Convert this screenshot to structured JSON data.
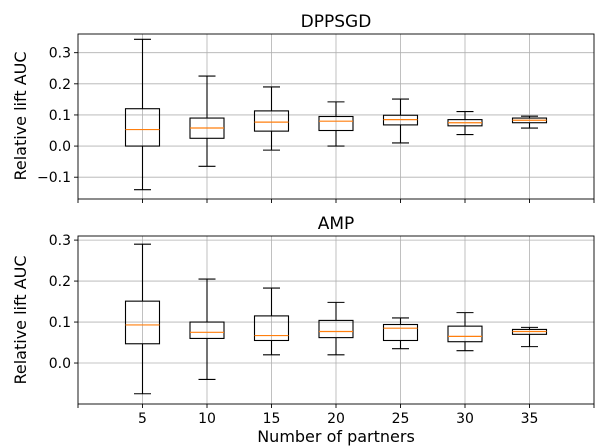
{
  "chart_data": [
    {
      "type": "box",
      "title": "DPPSGD",
      "xlabel": "",
      "ylabel": "Relative lift AUC",
      "categories": [
        "5",
        "10",
        "15",
        "20",
        "25",
        "30",
        "35"
      ],
      "x": [
        5,
        10,
        15,
        20,
        25,
        30,
        35
      ],
      "xlim": [
        0,
        40
      ],
      "ylim": [
        -0.17,
        0.36
      ],
      "yticks": [
        -0.1,
        0.0,
        0.1,
        0.2,
        0.3
      ],
      "ytick_labels": [
        "−0.1",
        "0.0",
        "0.1",
        "0.2",
        "0.3"
      ],
      "show_xtick_labels": false,
      "grid": true,
      "boxes": [
        {
          "x": 5,
          "whisker_low": -0.14,
          "q1": 0.0,
          "median": 0.053,
          "q3": 0.12,
          "whisker_high": 0.343
        },
        {
          "x": 10,
          "whisker_low": -0.065,
          "q1": 0.025,
          "median": 0.058,
          "q3": 0.09,
          "whisker_high": 0.225
        },
        {
          "x": 15,
          "whisker_low": -0.013,
          "q1": 0.048,
          "median": 0.077,
          "q3": 0.113,
          "whisker_high": 0.19
        },
        {
          "x": 20,
          "whisker_low": 0.0,
          "q1": 0.05,
          "median": 0.08,
          "q3": 0.095,
          "whisker_high": 0.142
        },
        {
          "x": 25,
          "whisker_low": 0.01,
          "q1": 0.068,
          "median": 0.085,
          "q3": 0.099,
          "whisker_high": 0.151
        },
        {
          "x": 30,
          "whisker_low": 0.037,
          "q1": 0.065,
          "median": 0.075,
          "q3": 0.085,
          "whisker_high": 0.111
        },
        {
          "x": 35,
          "whisker_low": 0.058,
          "q1": 0.075,
          "median": 0.083,
          "q3": 0.09,
          "whisker_high": 0.096
        }
      ]
    },
    {
      "type": "box",
      "title": "AMP",
      "xlabel": "Number of partners",
      "ylabel": "Relative lift AUC",
      "categories": [
        "5",
        "10",
        "15",
        "20",
        "25",
        "30",
        "35"
      ],
      "x": [
        5,
        10,
        15,
        20,
        25,
        30,
        35
      ],
      "xlim": [
        0,
        40
      ],
      "ylim": [
        -0.1,
        0.31
      ],
      "yticks": [
        0.0,
        0.1,
        0.2,
        0.3
      ],
      "ytick_labels": [
        "0.0",
        "0.1",
        "0.2",
        "0.3"
      ],
      "xtick_labels": [
        "5",
        "10",
        "15",
        "20",
        "25",
        "30",
        "35"
      ],
      "show_xtick_labels": true,
      "grid": true,
      "boxes": [
        {
          "x": 5,
          "whisker_low": -0.075,
          "q1": 0.047,
          "median": 0.093,
          "q3": 0.151,
          "whisker_high": 0.29
        },
        {
          "x": 10,
          "whisker_low": -0.04,
          "q1": 0.06,
          "median": 0.075,
          "q3": 0.1,
          "whisker_high": 0.205
        },
        {
          "x": 15,
          "whisker_low": 0.02,
          "q1": 0.055,
          "median": 0.067,
          "q3": 0.115,
          "whisker_high": 0.183
        },
        {
          "x": 20,
          "whisker_low": 0.02,
          "q1": 0.062,
          "median": 0.077,
          "q3": 0.104,
          "whisker_high": 0.148
        },
        {
          "x": 25,
          "whisker_low": 0.035,
          "q1": 0.055,
          "median": 0.085,
          "q3": 0.094,
          "whisker_high": 0.11
        },
        {
          "x": 30,
          "whisker_low": 0.03,
          "q1": 0.052,
          "median": 0.065,
          "q3": 0.09,
          "whisker_high": 0.123
        },
        {
          "x": 35,
          "whisker_low": 0.04,
          "q1": 0.07,
          "median": 0.077,
          "q3": 0.082,
          "whisker_high": 0.087
        }
      ]
    }
  ],
  "colors": {
    "box": "#000000",
    "median": "#ff7f0e",
    "grid": "#b0b0b0",
    "axes": "#000000"
  }
}
